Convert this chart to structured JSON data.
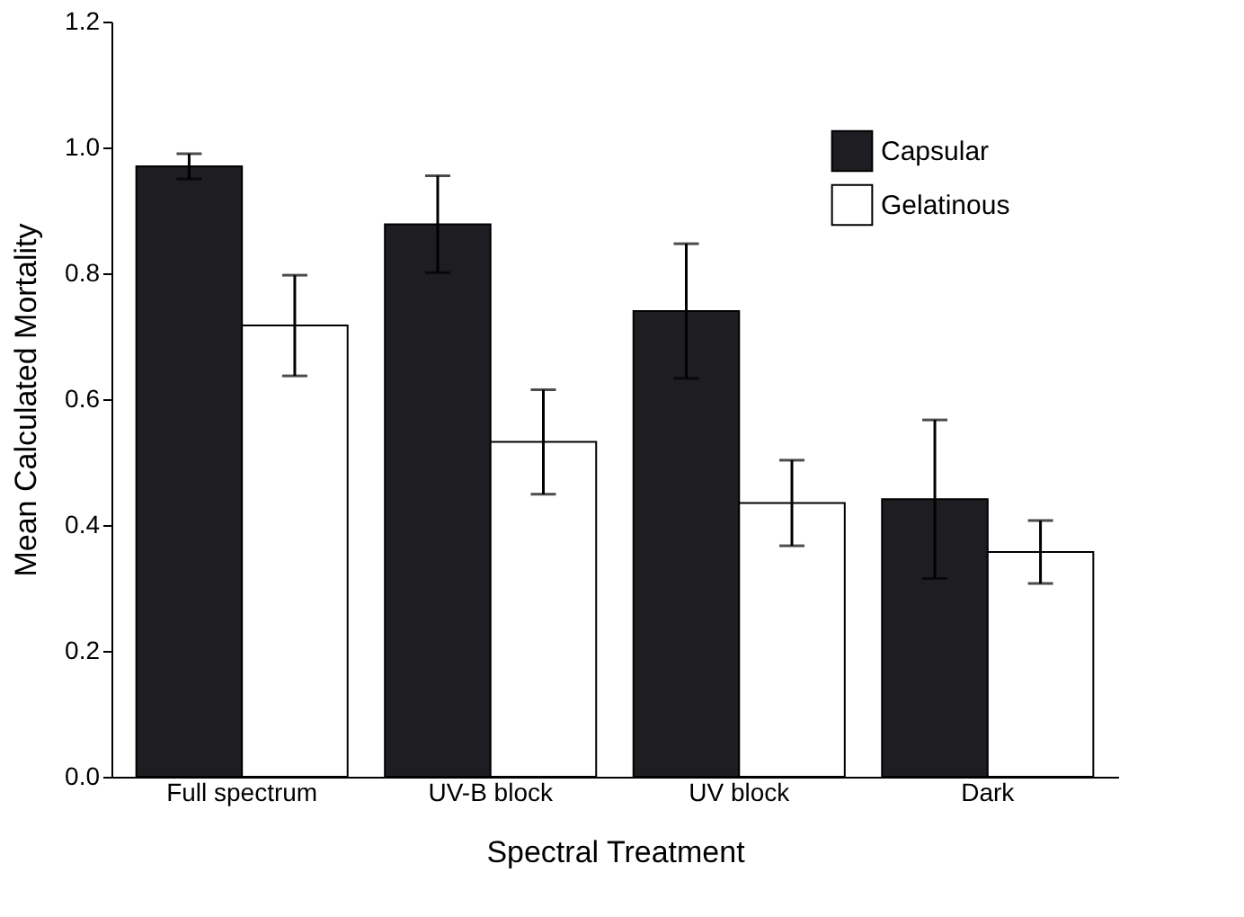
{
  "chart_data": {
    "type": "bar",
    "xlabel": "Spectral Treatment",
    "ylabel": "Mean Calculated Mortality",
    "categories": [
      "Full spectrum",
      "UV-B block",
      "UV block",
      "Dark"
    ],
    "series": [
      {
        "name": "Capsular",
        "color": "#1e1e22",
        "values": [
          0.97,
          0.878,
          0.74,
          0.441
        ],
        "errors": [
          0.02,
          0.077,
          0.107,
          0.126
        ]
      },
      {
        "name": "Gelatinous",
        "color": "#ffffff",
        "values": [
          0.717,
          0.532,
          0.435,
          0.357
        ],
        "errors": [
          0.08,
          0.083,
          0.068,
          0.05
        ]
      }
    ],
    "ylim": [
      0,
      1.2
    ],
    "yticks": [
      {
        "value": 0,
        "label": "0.0"
      },
      0.2,
      0.4,
      0.6,
      0.8,
      {
        "value": 1,
        "label": "1.0"
      },
      1.2
    ],
    "grid": false,
    "legend": "top right"
  }
}
